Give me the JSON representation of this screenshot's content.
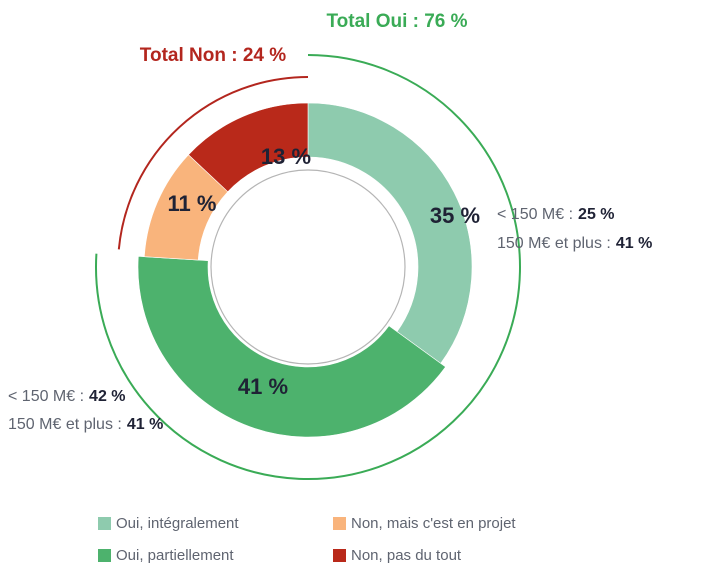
{
  "chart_data": {
    "type": "donut",
    "categories": [
      "Oui, intégralement",
      "Oui, partiellement",
      "Non, mais c'est en projet",
      "Non, pas du tout"
    ],
    "values": [
      35,
      41,
      11,
      13
    ],
    "value_labels": [
      "35 %",
      "41 %",
      "11 %",
      "13 %"
    ],
    "colors": [
      "#8ecbae",
      "#4db26d",
      "#f9b47c",
      "#b9291a"
    ],
    "annotations": [
      {
        "text": "Total Oui : 76 %",
        "color": "#3aab56"
      },
      {
        "text": "Total Non : 24 %",
        "color": "#b3261e"
      }
    ],
    "breakdowns": [
      [
        {
          "label": "< 150 M€ :",
          "value": "25 %"
        },
        {
          "label": "150 M€ et plus :",
          "value": "41 %"
        }
      ],
      [
        {
          "label": "< 150 M€ :",
          "value": "42 %"
        },
        {
          "label": "150 M€ et plus :",
          "value": "41 %"
        }
      ]
    ]
  }
}
